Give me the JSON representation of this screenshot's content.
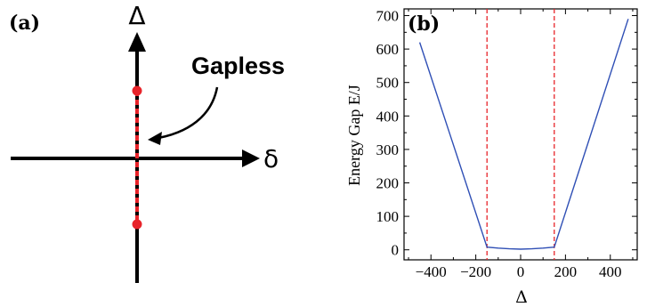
{
  "panel_a": {
    "label": "(a)",
    "vertical_axis_symbol": "Δ",
    "horizontal_axis_symbol": "δ",
    "annotation": "Gapless",
    "colors": {
      "axes": "#000000",
      "gapless_line": "#e8242a"
    }
  },
  "chart_data": [
    {
      "type": "line",
      "panel_label": "(b)",
      "xlabel": "Δ",
      "ylabel": "Energy Gap E/J",
      "xlim": [
        -520,
        520
      ],
      "ylim": [
        -30,
        720
      ],
      "xticks": [
        -400,
        -200,
        0,
        200,
        400
      ],
      "xtick_labels": [
        "−400",
        "−200",
        "0",
        "200",
        "400"
      ],
      "yticks": [
        0,
        100,
        200,
        300,
        400,
        500,
        600,
        700
      ],
      "ytick_labels": [
        "0",
        "100",
        "200",
        "300",
        "400",
        "500",
        "600",
        "700"
      ],
      "grid": false,
      "legend": "none",
      "series": [
        {
          "color": "#2f4fb5",
          "x": [
            -450,
            -150,
            -100,
            -50,
            0,
            50,
            100,
            150,
            480
          ],
          "y": [
            620,
            8,
            5,
            3,
            2,
            3,
            5,
            8,
            690
          ]
        }
      ],
      "vlines": {
        "x": [
          -150,
          150
        ],
        "color": "#e8242a",
        "style": "dashed"
      }
    }
  ]
}
